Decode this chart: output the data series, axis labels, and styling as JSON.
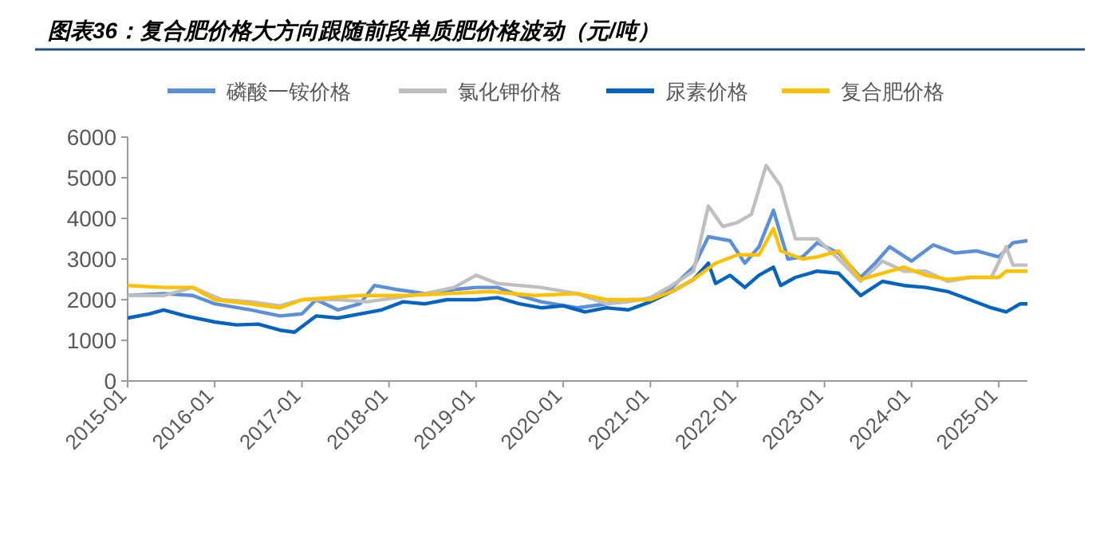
{
  "chart_data": {
    "type": "line",
    "title": "图表36：复合肥价格大方向跟随前段单质肥价格波动（元/吨）",
    "legend": "top",
    "grid": false,
    "xlim": [
      "2015-01",
      "2025-05"
    ],
    "xticks": [
      "2015-01",
      "2016-01",
      "2017-01",
      "2018-01",
      "2019-01",
      "2020-01",
      "2021-01",
      "2022-01",
      "2023-01",
      "2024-01",
      "2025-01"
    ],
    "ylim": [
      0,
      6000
    ],
    "yticks": [
      0,
      1000,
      2000,
      3000,
      4000,
      5000,
      6000
    ],
    "series": [
      {
        "name": "磷酸一铵价格",
        "color": "#5b8fd8",
        "x": [
          "2015-01",
          "2015-06",
          "2015-10",
          "2016-01",
          "2016-06",
          "2016-10",
          "2017-01",
          "2017-03",
          "2017-06",
          "2017-09",
          "2017-11",
          "2018-02",
          "2018-06",
          "2018-10",
          "2019-01",
          "2019-04",
          "2019-07",
          "2019-10",
          "2020-03",
          "2020-07",
          "2020-10",
          "2021-01",
          "2021-04",
          "2021-07",
          "2021-09",
          "2021-12",
          "2022-02",
          "2022-04",
          "2022-06",
          "2022-08",
          "2022-10",
          "2022-12",
          "2023-03",
          "2023-06",
          "2023-08",
          "2023-10",
          "2024-01",
          "2024-04",
          "2024-07",
          "2024-10",
          "2025-01",
          "2025-03",
          "2025-05"
        ],
        "values": [
          2100,
          2150,
          2100,
          1900,
          1750,
          1600,
          1650,
          2000,
          1750,
          1900,
          2350,
          2250,
          2150,
          2250,
          2300,
          2300,
          2100,
          1950,
          1800,
          1900,
          2000,
          2000,
          2300,
          2800,
          3550,
          3450,
          2900,
          3300,
          4200,
          3000,
          3050,
          3400,
          3150,
          2550,
          2900,
          3300,
          2950,
          3350,
          3150,
          3200,
          3050,
          3400,
          3450
        ]
      },
      {
        "name": "氯化钾价格",
        "color": "#bfbfbf",
        "x": [
          "2015-01",
          "2015-06",
          "2015-10",
          "2016-02",
          "2016-06",
          "2016-10",
          "2017-01",
          "2017-06",
          "2017-10",
          "2018-02",
          "2018-06",
          "2018-10",
          "2019-01",
          "2019-04",
          "2019-10",
          "2020-03",
          "2020-07",
          "2020-10",
          "2021-01",
          "2021-04",
          "2021-07",
          "2021-09",
          "2021-11",
          "2022-01",
          "2022-03",
          "2022-05",
          "2022-07",
          "2022-09",
          "2022-12",
          "2023-03",
          "2023-06",
          "2023-09",
          "2023-12",
          "2024-03",
          "2024-06",
          "2024-09",
          "2024-12",
          "2025-02",
          "2025-03",
          "2025-05"
        ],
        "values": [
          2100,
          2100,
          2300,
          2000,
          1950,
          1850,
          2000,
          2000,
          1950,
          2050,
          2150,
          2300,
          2600,
          2400,
          2300,
          2150,
          1900,
          1950,
          2050,
          2350,
          2700,
          4300,
          3800,
          3900,
          4100,
          5300,
          4800,
          3500,
          3500,
          3000,
          2450,
          2950,
          2700,
          2700,
          2450,
          2550,
          2550,
          3300,
          2850,
          2850
        ]
      },
      {
        "name": "尿素价格",
        "color": "#0563c1",
        "x": [
          "2015-01",
          "2015-04",
          "2015-06",
          "2015-09",
          "2016-01",
          "2016-04",
          "2016-07",
          "2016-10",
          "2016-12",
          "2017-03",
          "2017-06",
          "2017-09",
          "2017-12",
          "2018-03",
          "2018-06",
          "2018-09",
          "2019-01",
          "2019-04",
          "2019-07",
          "2019-10",
          "2020-01",
          "2020-04",
          "2020-07",
          "2020-10",
          "2021-01",
          "2021-04",
          "2021-07",
          "2021-09",
          "2021-10",
          "2021-12",
          "2022-01",
          "2022-02",
          "2022-04",
          "2022-06",
          "2022-07",
          "2022-09",
          "2022-12",
          "2023-03",
          "2023-06",
          "2023-09",
          "2023-12",
          "2024-03",
          "2024-06",
          "2024-09",
          "2024-12",
          "2025-02",
          "2025-04",
          "2025-05"
        ],
        "values": [
          1550,
          1650,
          1750,
          1600,
          1450,
          1380,
          1400,
          1250,
          1200,
          1600,
          1550,
          1650,
          1750,
          1950,
          1900,
          2000,
          2000,
          2050,
          1900,
          1800,
          1850,
          1700,
          1800,
          1750,
          1950,
          2200,
          2500,
          2900,
          2400,
          2600,
          2450,
          2300,
          2600,
          2800,
          2350,
          2550,
          2700,
          2650,
          2100,
          2450,
          2350,
          2300,
          2200,
          2000,
          1800,
          1700,
          1900,
          1900
        ]
      },
      {
        "name": "复合肥价格",
        "color": "#ffc000",
        "x": [
          "2015-01",
          "2015-06",
          "2015-10",
          "2016-01",
          "2016-06",
          "2016-10",
          "2017-01",
          "2017-05",
          "2017-09",
          "2018-03",
          "2018-09",
          "2019-03",
          "2019-09",
          "2020-03",
          "2020-07",
          "2021-01",
          "2021-04",
          "2021-07",
          "2021-10",
          "2022-01",
          "2022-04",
          "2022-06",
          "2022-07",
          "2022-10",
          "2022-12",
          "2023-03",
          "2023-06",
          "2023-09",
          "2023-12",
          "2024-03",
          "2024-06",
          "2024-09",
          "2025-01",
          "2025-02",
          "2025-05"
        ],
        "values": [
          2350,
          2300,
          2300,
          2000,
          1900,
          1800,
          2000,
          2050,
          2100,
          2100,
          2150,
          2200,
          2100,
          2150,
          2000,
          2000,
          2200,
          2500,
          2900,
          3100,
          3100,
          3750,
          3200,
          3000,
          3050,
          3200,
          2500,
          2650,
          2800,
          2600,
          2500,
          2550,
          2550,
          2700,
          2700
        ]
      }
    ]
  }
}
